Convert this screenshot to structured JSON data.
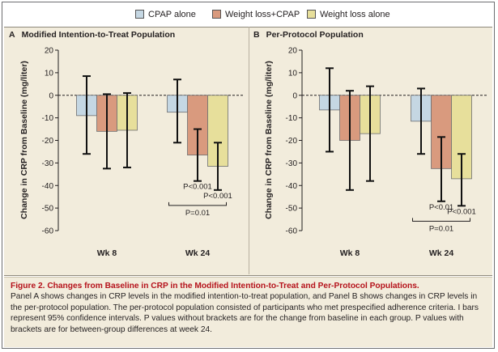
{
  "colors": {
    "cpap": "#c5d7e3",
    "weight_loss_cpap": "#d99a7e",
    "weight_loss": "#e7df9b",
    "panel_bg": "#f2ecdc",
    "caption_accent": "#b5121b"
  },
  "legend": [
    {
      "label": "CPAP alone",
      "color": "#c5d7e3"
    },
    {
      "label": "Weight loss+CPAP",
      "color": "#d99a7e"
    },
    {
      "label": "Weight loss alone",
      "color": "#e7df9b"
    }
  ],
  "panels": [
    {
      "letter": "A",
      "title": "Modified Intention-to-Treat Population",
      "ylabel": "Change in CRP from Baseline (mg/liter)"
    },
    {
      "letter": "B",
      "title": "Per-Protocol Population",
      "ylabel": "Change in CRP from Baseline (mg/liter)"
    }
  ],
  "chart_data": [
    {
      "type": "bar",
      "title": "Modified Intention-to-Treat Population",
      "xlabel": "",
      "ylabel": "Change in CRP from Baseline (mg/liter)",
      "categories": [
        "Wk 8",
        "Wk 24"
      ],
      "yticks": [
        20,
        10,
        0,
        -10,
        -20,
        -30,
        -40,
        -50,
        -60
      ],
      "ylim": [
        -60,
        20
      ],
      "reference_line": 0,
      "series": [
        {
          "name": "CPAP alone",
          "values": [
            -9,
            -7.5
          ],
          "ci_low": [
            -26,
            -21
          ],
          "ci_high": [
            8.5,
            7
          ]
        },
        {
          "name": "Weight loss+CPAP",
          "values": [
            -16,
            -26.5
          ],
          "ci_low": [
            -32.5,
            -38
          ],
          "ci_high": [
            0.5,
            -15
          ]
        },
        {
          "name": "Weight loss alone",
          "values": [
            -15.5,
            -31.5
          ],
          "ci_low": [
            -32,
            -42
          ],
          "ci_high": [
            1,
            -21
          ]
        }
      ],
      "annotations": [
        {
          "text": "P<0.001",
          "category": "Wk 24",
          "series": 1
        },
        {
          "text": "P<0.001",
          "category": "Wk 24",
          "series": 2
        }
      ],
      "brackets": [
        {
          "text": "P=0.01",
          "category": "Wk 24",
          "from_series": 0,
          "to_series": 2
        }
      ]
    },
    {
      "type": "bar",
      "title": "Per-Protocol Population",
      "xlabel": "",
      "ylabel": "Change in CRP from Baseline (mg/liter)",
      "categories": [
        "Wk 8",
        "Wk 24"
      ],
      "yticks": [
        20,
        10,
        0,
        -10,
        -20,
        -30,
        -40,
        -50,
        -60
      ],
      "ylim": [
        -60,
        20
      ],
      "reference_line": 0,
      "series": [
        {
          "name": "CPAP alone",
          "values": [
            -6.5,
            -11.5
          ],
          "ci_low": [
            -25,
            -26
          ],
          "ci_high": [
            12,
            3
          ]
        },
        {
          "name": "Weight loss+CPAP",
          "values": [
            -20,
            -32.5
          ],
          "ci_low": [
            -42,
            -47
          ],
          "ci_high": [
            2,
            -18.5
          ]
        },
        {
          "name": "Weight loss alone",
          "values": [
            -17,
            -37
          ],
          "ci_low": [
            -38,
            -49
          ],
          "ci_high": [
            4,
            -26
          ]
        }
      ],
      "annotations": [
        {
          "text": "P<0.01",
          "category": "Wk 24",
          "series": 1
        },
        {
          "text": "P<0.001",
          "category": "Wk 24",
          "series": 2
        }
      ],
      "brackets": [
        {
          "text": "P=0.01",
          "category": "Wk 24",
          "from_series": 0,
          "to_series": 2
        }
      ]
    }
  ],
  "caption": {
    "figure_label": "Figure 2.",
    "title": "Changes from Baseline in CRP in the Modified Intention-to-Treat and Per-Protocol Populations.",
    "body": "Panel A shows changes in CRP levels in the modified intention-to-treat population, and Panel B shows changes in CRP levels in the per-protocol population. The per-protocol population consisted of participants who met prespecified adherence criteria. I bars represent 95% confidence intervals. P values without brackets are for the change from baseline in each group. P values with brackets are for between-group differences at week 24."
  }
}
